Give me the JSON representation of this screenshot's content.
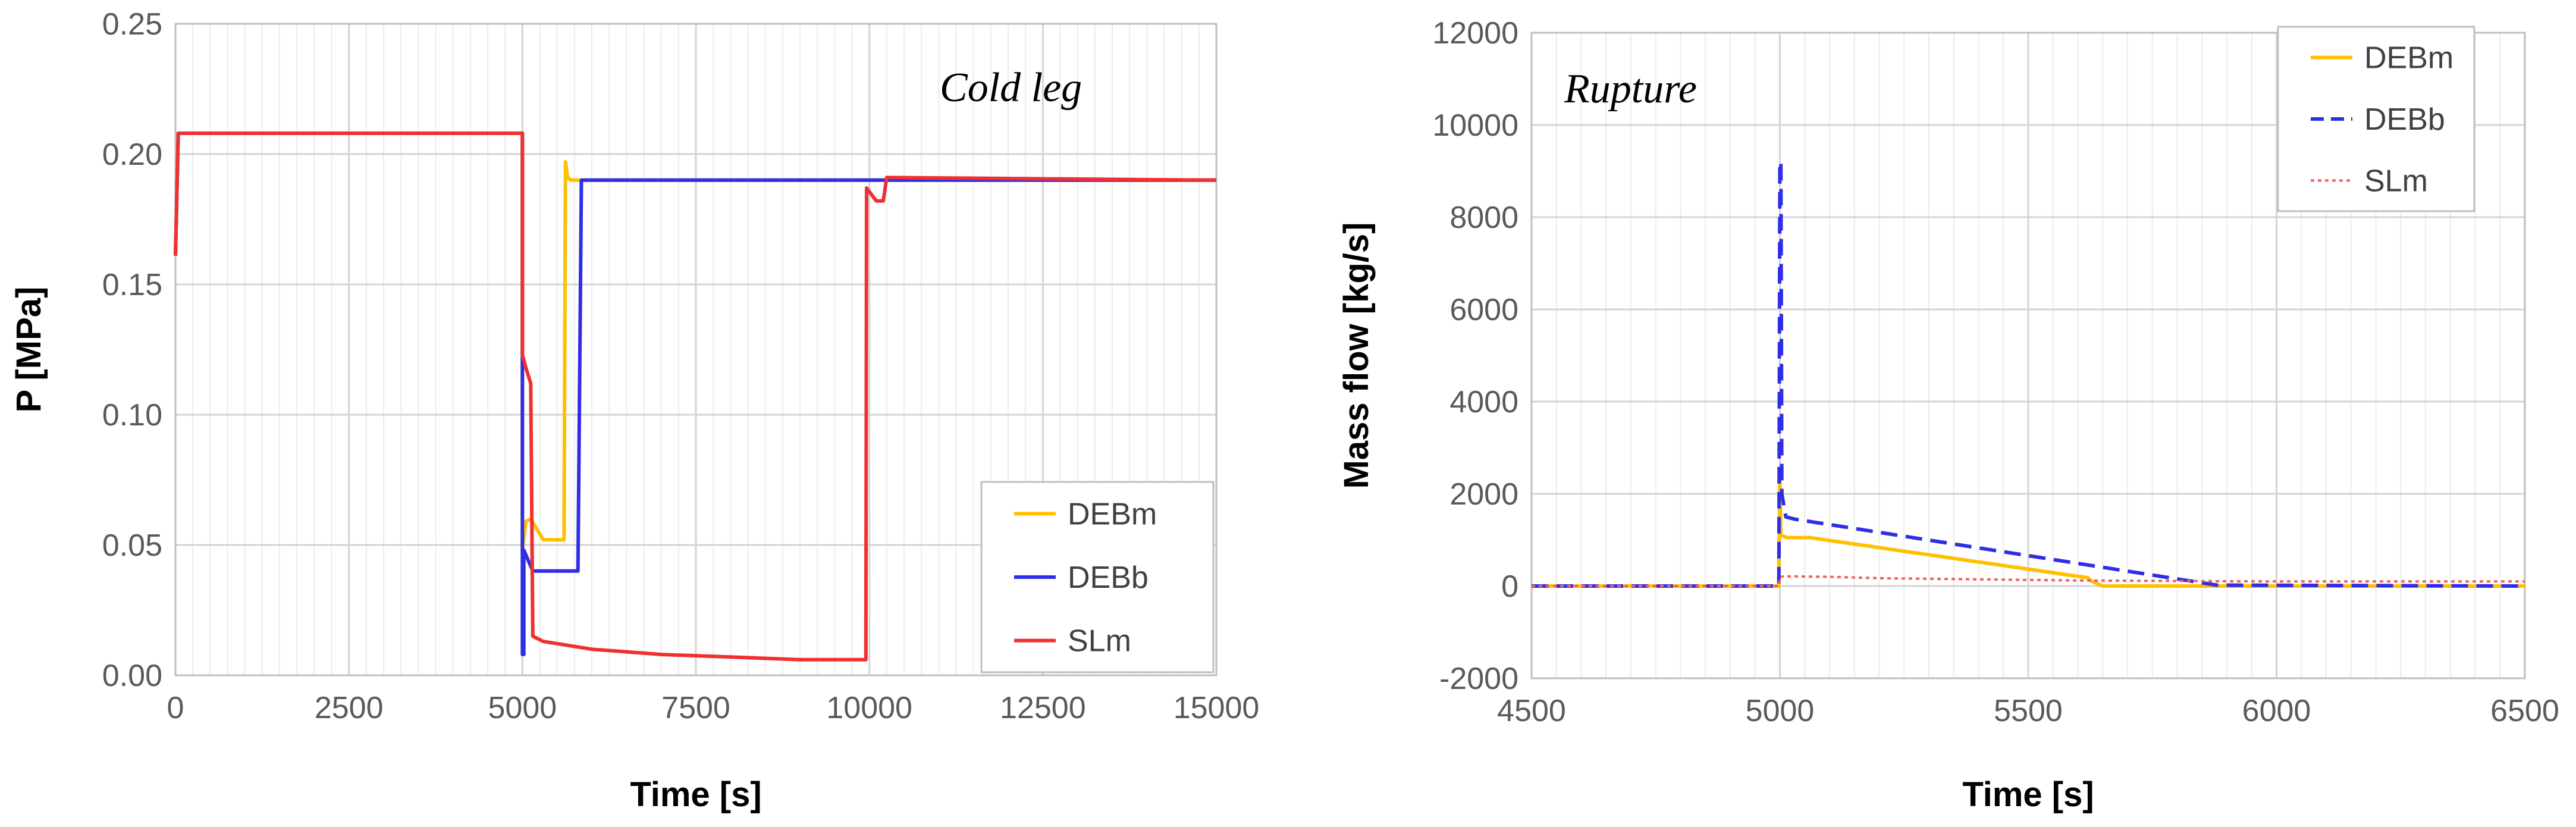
{
  "chart_data": [
    {
      "type": "line",
      "title": "",
      "annotation": "Cold leg",
      "xlabel": "Time [s]",
      "ylabel": "P [MPa]",
      "xlim": [
        0,
        15000
      ],
      "ylim": [
        0,
        0.25
      ],
      "x_ticks": [
        0,
        2500,
        5000,
        7500,
        10000,
        12500,
        15000
      ],
      "x_tick_labels": [
        "0",
        "2500",
        "5000",
        "7500",
        "10000",
        "12500",
        "15000"
      ],
      "y_ticks": [
        0,
        0.05,
        0.1,
        0.15,
        0.2,
        0.25
      ],
      "y_tick_labels": [
        "0.00",
        "0.05",
        "0.10",
        "0.15",
        "0.20",
        "0.25"
      ],
      "grid": true,
      "legend_position": "bottom-right",
      "series": [
        {
          "name": "DEBm",
          "color": "#FFC000",
          "dash": "solid",
          "x": [
            0,
            40,
            5000,
            5000,
            5050,
            5120,
            5300,
            5600,
            5620,
            5650,
            5700,
            15000
          ],
          "y": [
            0.161,
            0.208,
            0.208,
            0.048,
            0.059,
            0.06,
            0.052,
            0.052,
            0.197,
            0.191,
            0.19,
            0.19
          ]
        },
        {
          "name": "DEBb",
          "color": "#2E2EE6",
          "dash": "solid",
          "x": [
            0,
            40,
            5000,
            5000,
            5020,
            5020,
            5150,
            5800,
            5850,
            15000
          ],
          "y": [
            0.161,
            0.208,
            0.208,
            0.008,
            0.008,
            0.048,
            0.04,
            0.04,
            0.19,
            0.19
          ],
          "lw": 5
        },
        {
          "name": "SLm",
          "color": "#F03030",
          "dash": "solid",
          "x": [
            0,
            40,
            5000,
            5000,
            5050,
            5120,
            5150,
            5300,
            6000,
            7000,
            8000,
            9000,
            9950,
            9960,
            10100,
            10200,
            10250,
            15000
          ],
          "y": [
            0.161,
            0.208,
            0.208,
            0.123,
            0.118,
            0.112,
            0.015,
            0.013,
            0.01,
            0.008,
            0.007,
            0.006,
            0.006,
            0.187,
            0.182,
            0.182,
            0.191,
            0.19
          ]
        }
      ]
    },
    {
      "type": "line",
      "title": "",
      "annotation": "Rupture",
      "xlabel": "Time [s]",
      "ylabel": "Mass flow [kg/s]",
      "xlim": [
        4500,
        6500
      ],
      "ylim": [
        -2000,
        12000
      ],
      "x_ticks": [
        4500,
        5000,
        5500,
        6000,
        6500
      ],
      "x_tick_labels": [
        "4500",
        "5000",
        "5500",
        "6000",
        "6500"
      ],
      "y_ticks": [
        -2000,
        0,
        2000,
        4000,
        6000,
        8000,
        10000,
        12000
      ],
      "y_tick_labels": [
        "-2000",
        "0",
        "2000",
        "4000",
        "6000",
        "8000",
        "10000",
        "12000"
      ],
      "grid": true,
      "legend_position": "top-right",
      "series": [
        {
          "name": "DEBm",
          "color": "#FFC000",
          "dash": "solid",
          "x": [
            4500,
            4998,
            5000,
            5002,
            5015,
            5060,
            5620,
            5625,
            5650,
            6500
          ],
          "y": [
            0,
            0,
            2400,
            1100,
            1050,
            1050,
            180,
            120,
            0,
            0
          ]
        },
        {
          "name": "DEBb",
          "color": "#2E2EE6",
          "dash": "dashed",
          "x": [
            4500,
            4998,
            5000,
            5002,
            5004,
            5012,
            5030,
            5880,
            6500
          ],
          "y": [
            0,
            0,
            9200,
            9200,
            2000,
            1500,
            1450,
            20,
            0
          ]
        },
        {
          "name": "SLm",
          "color": "#F06060",
          "dash": "dotted",
          "x": [
            4500,
            4998,
            5000,
            5010,
            5100,
            5200,
            5600,
            6000,
            6500
          ],
          "y": [
            0,
            0,
            200,
            210,
            200,
            170,
            120,
            100,
            100
          ]
        }
      ]
    }
  ]
}
